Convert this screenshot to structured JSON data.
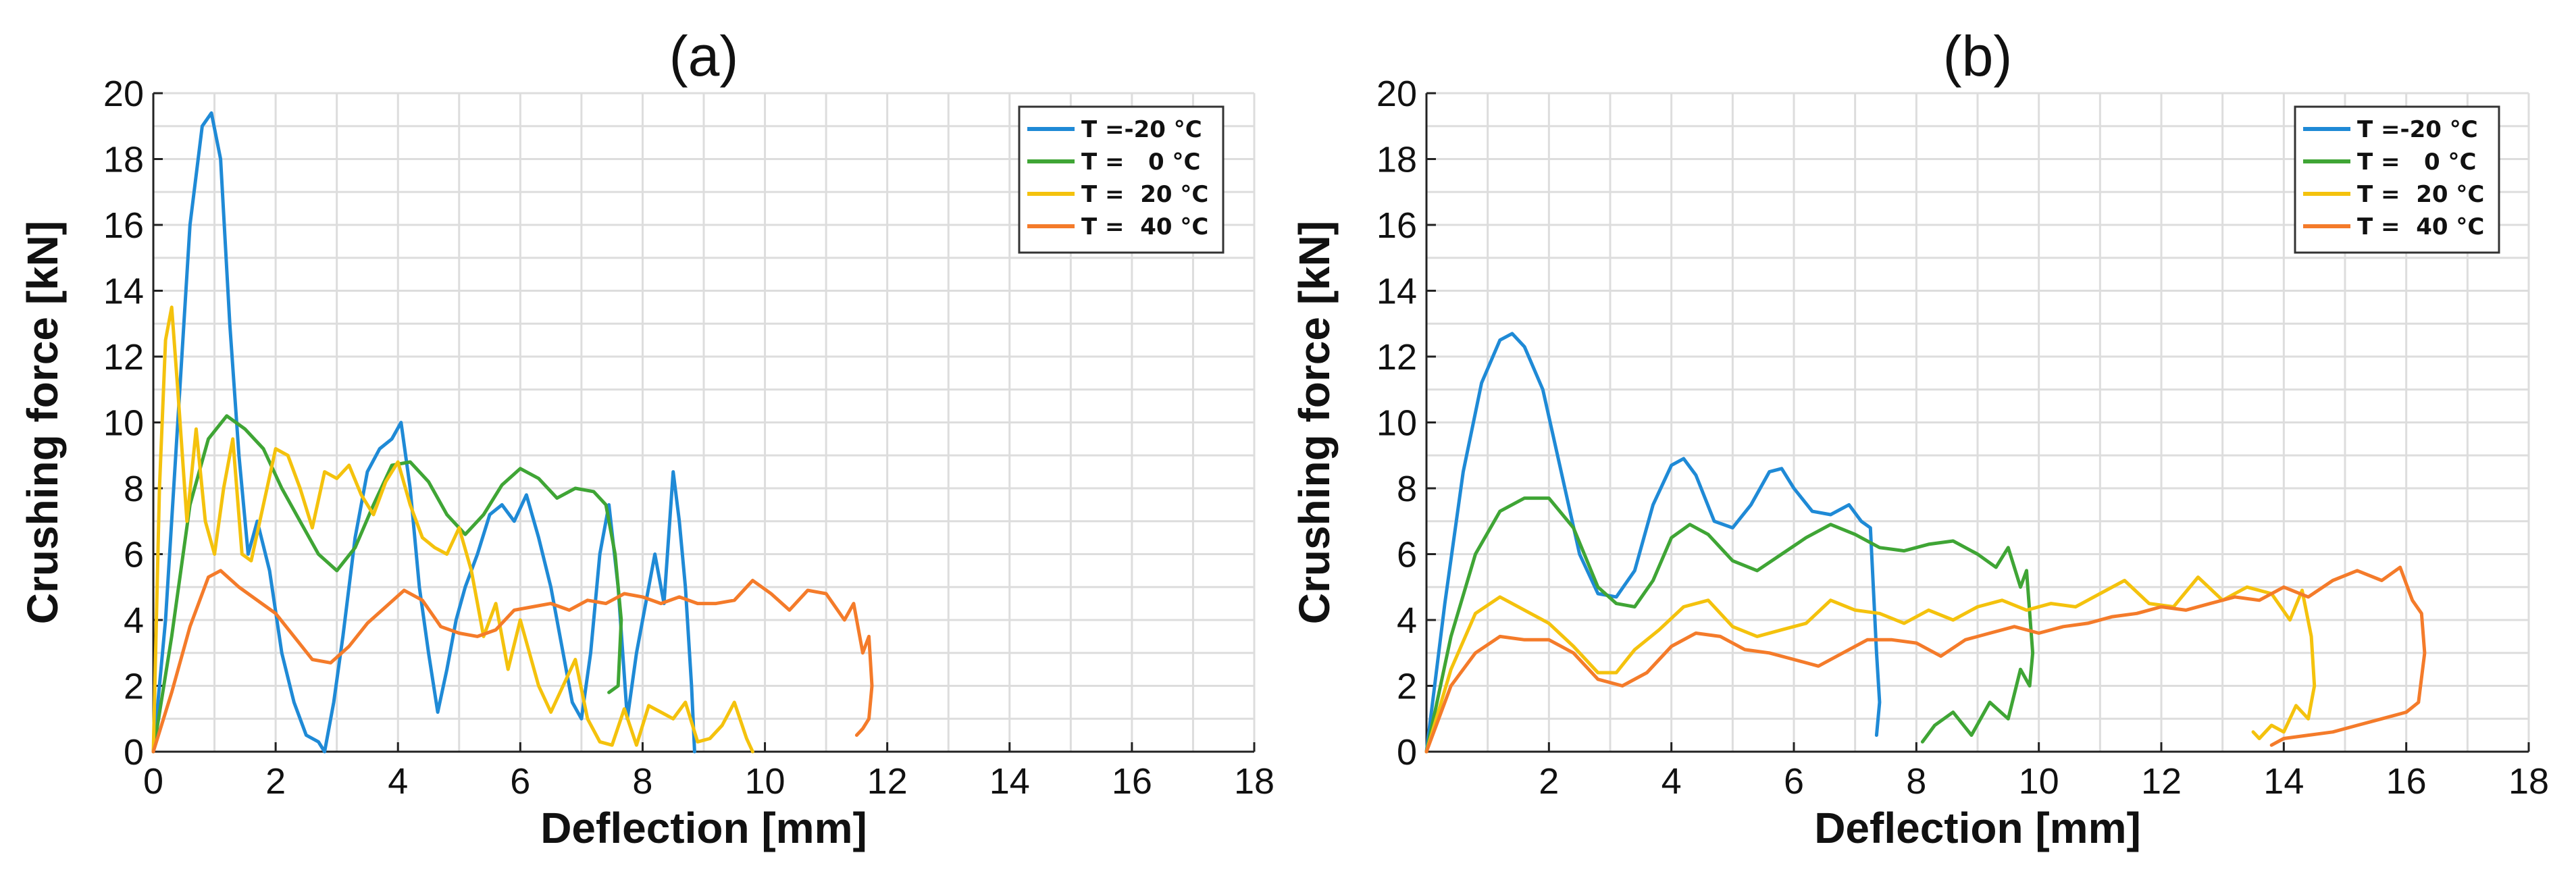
{
  "chart_data": [
    {
      "type": "line",
      "title": "(a)",
      "xlabel": "Deflection [mm]",
      "ylabel": "Crushing force [kN]",
      "xlim": [
        0,
        18
      ],
      "ylim": [
        0,
        20
      ],
      "xticks": [
        0,
        2,
        4,
        6,
        8,
        10,
        12,
        14,
        16,
        18
      ],
      "yticks": [
        0,
        2,
        4,
        6,
        8,
        10,
        12,
        14,
        16,
        18,
        20
      ],
      "grid": true,
      "legend_position": "top-right",
      "series": [
        {
          "name": "T =-20 °C",
          "color": "#1f8ad6",
          "x": [
            0,
            0.2,
            0.4,
            0.6,
            0.8,
            0.95,
            1.1,
            1.25,
            1.4,
            1.55,
            1.7,
            1.9,
            2.1,
            2.3,
            2.5,
            2.7,
            2.8,
            2.95,
            3.1,
            3.3,
            3.5,
            3.7,
            3.9,
            4.05,
            4.2,
            4.35,
            4.5,
            4.65,
            4.8,
            4.95,
            5.1,
            5.3,
            5.5,
            5.7,
            5.9,
            6.1,
            6.3,
            6.5,
            6.7,
            6.85,
            7.0,
            7.15,
            7.3,
            7.45,
            7.6,
            7.75,
            7.9,
            8.05,
            8.2,
            8.35,
            8.5,
            8.6,
            8.7,
            8.8,
            8.85
          ],
          "y": [
            0,
            4,
            10,
            16,
            19,
            19.4,
            18,
            13,
            9,
            6,
            7,
            5.5,
            3,
            1.5,
            0.5,
            0.3,
            0,
            1.5,
            3.5,
            6.5,
            8.5,
            9.2,
            9.5,
            10,
            8,
            5,
            3,
            1.2,
            2.5,
            4,
            5,
            6,
            7.2,
            7.5,
            7,
            7.8,
            6.5,
            5,
            3,
            1.5,
            1,
            3,
            6,
            7.5,
            5,
            1,
            3,
            4.5,
            6,
            4.5,
            8.5,
            7,
            5,
            2,
            0
          ]
        },
        {
          "name": "T =   0 °C",
          "color": "#3fa535",
          "x": [
            0,
            0.3,
            0.6,
            0.9,
            1.2,
            1.5,
            1.8,
            2.1,
            2.4,
            2.7,
            3.0,
            3.3,
            3.6,
            3.9,
            4.2,
            4.5,
            4.8,
            5.1,
            5.4,
            5.7,
            6.0,
            6.3,
            6.6,
            6.9,
            7.2,
            7.4,
            7.55,
            7.65,
            7.6,
            7.45
          ],
          "y": [
            0,
            3.5,
            7.5,
            9.5,
            10.2,
            9.8,
            9.2,
            8.0,
            7.0,
            6.0,
            5.5,
            6.2,
            7.5,
            8.7,
            8.8,
            8.2,
            7.2,
            6.6,
            7.2,
            8.1,
            8.6,
            8.3,
            7.7,
            8.0,
            7.9,
            7.5,
            6.0,
            4.0,
            2.0,
            1.8
          ]
        },
        {
          "name": "T =  20 °C",
          "color": "#f4c20d",
          "x": [
            0,
            0.1,
            0.2,
            0.3,
            0.4,
            0.55,
            0.7,
            0.85,
            1.0,
            1.15,
            1.3,
            1.45,
            1.6,
            1.8,
            2.0,
            2.2,
            2.4,
            2.6,
            2.8,
            3.0,
            3.2,
            3.4,
            3.6,
            3.8,
            4.0,
            4.2,
            4.4,
            4.6,
            4.8,
            5.0,
            5.2,
            5.4,
            5.6,
            5.8,
            6.0,
            6.3,
            6.5,
            6.7,
            6.9,
            7.1,
            7.3,
            7.5,
            7.7,
            7.9,
            8.1,
            8.3,
            8.5,
            8.7,
            8.9,
            9.1,
            9.3,
            9.5,
            9.7,
            9.8
          ],
          "y": [
            0,
            8,
            12.5,
            13.5,
            11,
            7,
            9.8,
            7,
            6,
            8,
            9.5,
            6,
            5.8,
            7.5,
            9.2,
            9,
            8,
            6.8,
            8.5,
            8.3,
            8.7,
            7.8,
            7.2,
            8.2,
            8.8,
            7.5,
            6.5,
            6.2,
            6.0,
            6.8,
            5.5,
            3.5,
            4.5,
            2.5,
            4.0,
            2.0,
            1.2,
            2.0,
            2.8,
            1.0,
            0.3,
            0.2,
            1.3,
            0.2,
            1.4,
            1.2,
            1.0,
            1.5,
            0.3,
            0.4,
            0.8,
            1.5,
            0.4,
            0
          ]
        },
        {
          "name": "T =  40 °C",
          "color": "#f47b2a",
          "x": [
            0,
            0.3,
            0.6,
            0.9,
            1.1,
            1.4,
            1.7,
            2.0,
            2.3,
            2.6,
            2.9,
            3.2,
            3.5,
            3.8,
            4.1,
            4.4,
            4.7,
            5.0,
            5.3,
            5.6,
            5.9,
            6.2,
            6.5,
            6.8,
            7.1,
            7.4,
            7.7,
            8.0,
            8.3,
            8.6,
            8.9,
            9.2,
            9.5,
            9.8,
            10.1,
            10.4,
            10.7,
            11.0,
            11.3,
            11.45,
            11.6,
            11.7,
            11.75,
            11.7,
            11.6,
            11.5
          ],
          "y": [
            0,
            1.8,
            3.8,
            5.3,
            5.5,
            5.0,
            4.6,
            4.2,
            3.5,
            2.8,
            2.7,
            3.2,
            3.9,
            4.4,
            4.9,
            4.6,
            3.8,
            3.6,
            3.5,
            3.7,
            4.3,
            4.4,
            4.5,
            4.3,
            4.6,
            4.5,
            4.8,
            4.7,
            4.5,
            4.7,
            4.5,
            4.5,
            4.6,
            5.2,
            4.8,
            4.3,
            4.9,
            4.8,
            4.0,
            4.5,
            3.0,
            3.5,
            2.0,
            1.0,
            0.7,
            0.5
          ]
        }
      ]
    },
    {
      "type": "line",
      "title": "(b)",
      "xlabel": "Deflection [mm]",
      "ylabel": "Crushing force [kN]",
      "xlim": [
        0,
        18
      ],
      "ylim": [
        0,
        20
      ],
      "xticks": [
        2,
        4,
        6,
        8,
        10,
        12,
        14,
        16,
        18
      ],
      "yticks": [
        0,
        2,
        4,
        6,
        8,
        10,
        12,
        14,
        16,
        18,
        20
      ],
      "grid": true,
      "legend_position": "top-right",
      "series": [
        {
          "name": "T =-20 °C",
          "color": "#1f8ad6",
          "x": [
            0,
            0.3,
            0.6,
            0.9,
            1.2,
            1.4,
            1.6,
            1.9,
            2.2,
            2.5,
            2.8,
            3.1,
            3.4,
            3.7,
            4.0,
            4.2,
            4.4,
            4.7,
            5.0,
            5.3,
            5.6,
            5.8,
            6.0,
            6.3,
            6.6,
            6.9,
            7.1,
            7.25,
            7.35,
            7.4,
            7.35
          ],
          "y": [
            0,
            4.5,
            8.5,
            11.2,
            12.5,
            12.7,
            12.3,
            11.0,
            8.5,
            6.0,
            4.8,
            4.7,
            5.5,
            7.5,
            8.7,
            8.9,
            8.4,
            7.0,
            6.8,
            7.5,
            8.5,
            8.6,
            8.0,
            7.3,
            7.2,
            7.5,
            7.0,
            6.8,
            3.0,
            1.5,
            0.5
          ]
        },
        {
          "name": "T =   0 °C",
          "color": "#3fa535",
          "x": [
            0,
            0.4,
            0.8,
            1.2,
            1.6,
            2.0,
            2.4,
            2.8,
            3.1,
            3.4,
            3.7,
            4.0,
            4.3,
            4.6,
            5.0,
            5.4,
            5.8,
            6.2,
            6.6,
            7.0,
            7.4,
            7.8,
            8.2,
            8.6,
            9.0,
            9.3,
            9.5,
            9.7,
            9.8,
            9.9,
            9.85,
            9.7,
            9.5,
            9.2,
            8.9,
            8.6,
            8.3,
            8.1
          ],
          "y": [
            0,
            3.5,
            6.0,
            7.3,
            7.7,
            7.7,
            6.8,
            5.0,
            4.5,
            4.4,
            5.2,
            6.5,
            6.9,
            6.6,
            5.8,
            5.5,
            6.0,
            6.5,
            6.9,
            6.6,
            6.2,
            6.1,
            6.3,
            6.4,
            6.0,
            5.6,
            6.2,
            5.0,
            5.5,
            3.0,
            2.0,
            2.5,
            1.0,
            1.5,
            0.5,
            1.2,
            0.8,
            0.3
          ]
        },
        {
          "name": "T =  20 °C",
          "color": "#f4c20d",
          "x": [
            0,
            0.4,
            0.8,
            1.2,
            1.6,
            2.0,
            2.4,
            2.8,
            3.1,
            3.4,
            3.8,
            4.2,
            4.6,
            5.0,
            5.4,
            5.8,
            6.2,
            6.6,
            7.0,
            7.4,
            7.8,
            8.2,
            8.6,
            9.0,
            9.4,
            9.8,
            10.2,
            10.6,
            11.0,
            11.4,
            11.8,
            12.2,
            12.6,
            13.0,
            13.4,
            13.8,
            14.1,
            14.3,
            14.45,
            14.5,
            14.4,
            14.2,
            14.0,
            13.8,
            13.6,
            13.5
          ],
          "y": [
            0,
            2.5,
            4.2,
            4.7,
            4.3,
            3.9,
            3.2,
            2.4,
            2.4,
            3.1,
            3.7,
            4.4,
            4.6,
            3.8,
            3.5,
            3.7,
            3.9,
            4.6,
            4.3,
            4.2,
            3.9,
            4.3,
            4.0,
            4.4,
            4.6,
            4.3,
            4.5,
            4.4,
            4.8,
            5.2,
            4.5,
            4.4,
            5.3,
            4.6,
            5.0,
            4.8,
            4.0,
            4.9,
            3.5,
            2.0,
            1.0,
            1.4,
            0.6,
            0.8,
            0.4,
            0.6
          ]
        },
        {
          "name": "T =  40 °C",
          "color": "#f47b2a",
          "x": [
            0,
            0.4,
            0.8,
            1.2,
            1.6,
            2.0,
            2.4,
            2.8,
            3.2,
            3.6,
            4.0,
            4.4,
            4.8,
            5.2,
            5.6,
            6.0,
            6.4,
            6.8,
            7.2,
            7.6,
            8.0,
            8.4,
            8.8,
            9.2,
            9.6,
            10.0,
            10.4,
            10.8,
            11.2,
            11.6,
            12.0,
            12.4,
            12.8,
            13.2,
            13.6,
            14.0,
            14.4,
            14.8,
            15.2,
            15.6,
            15.9,
            16.1,
            16.25,
            16.3,
            16.2,
            16.0,
            15.6,
            15.2,
            14.8,
            14.4,
            14.0,
            13.8
          ],
          "y": [
            0,
            2.0,
            3.0,
            3.5,
            3.4,
            3.4,
            3.0,
            2.2,
            2.0,
            2.4,
            3.2,
            3.6,
            3.5,
            3.1,
            3.0,
            2.8,
            2.6,
            3.0,
            3.4,
            3.4,
            3.3,
            2.9,
            3.4,
            3.6,
            3.8,
            3.6,
            3.8,
            3.9,
            4.1,
            4.2,
            4.4,
            4.3,
            4.5,
            4.7,
            4.6,
            5.0,
            4.7,
            5.2,
            5.5,
            5.2,
            5.6,
            4.6,
            4.2,
            3.0,
            1.5,
            1.2,
            1.0,
            0.8,
            0.6,
            0.5,
            0.4,
            0.2
          ]
        }
      ]
    }
  ]
}
